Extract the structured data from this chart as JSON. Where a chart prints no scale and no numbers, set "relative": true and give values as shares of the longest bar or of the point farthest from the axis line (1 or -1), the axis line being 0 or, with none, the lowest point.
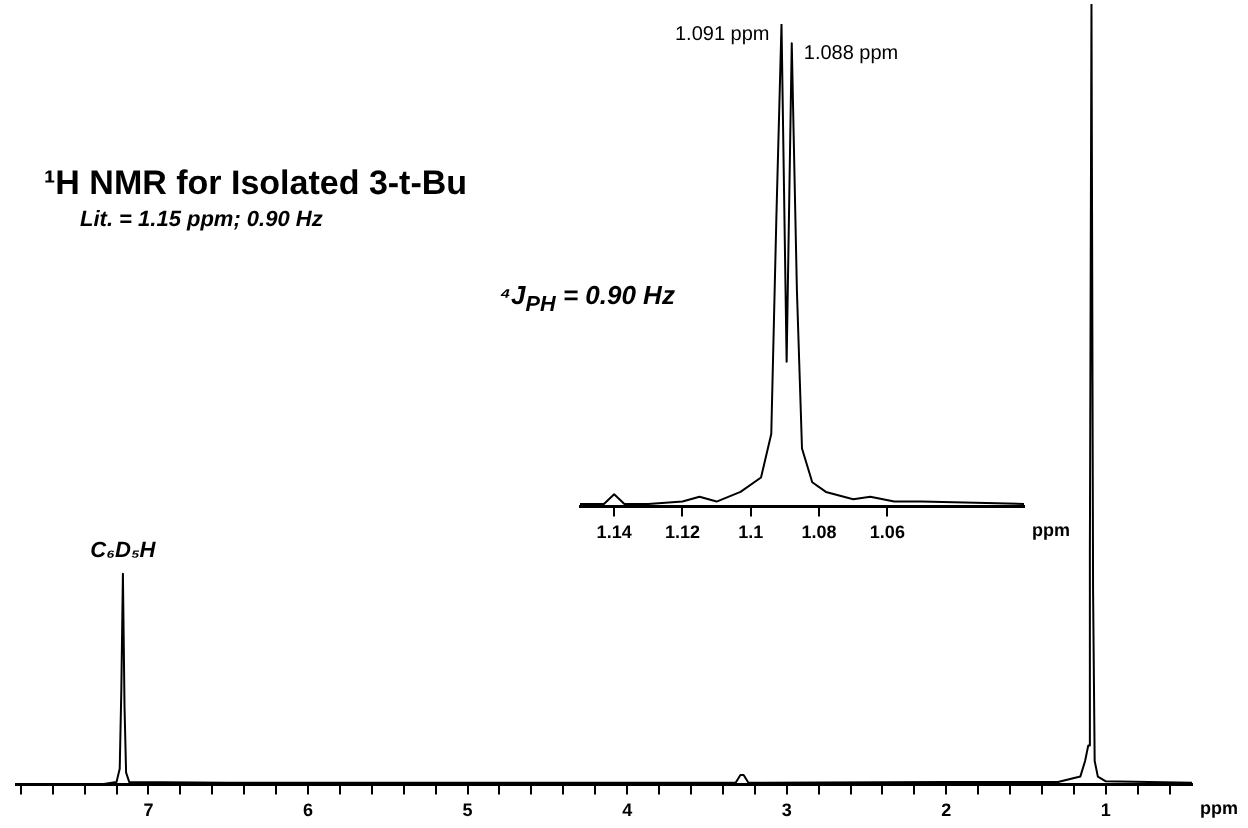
{
  "chart_data": [
    {
      "type": "line",
      "title": "¹H NMR for Isolated 3-t-Bu",
      "subtitle": "Lit. = 1.15 ppm; 0.90 Hz",
      "xlabel": "ppm",
      "relative": true,
      "color": "#000000",
      "grid": false,
      "x": [
        7.83,
        7.3,
        7.2,
        7.18,
        7.17,
        7.16,
        7.15,
        7.14,
        7.12,
        6.5,
        5.0,
        3.32,
        3.29,
        3.27,
        3.24,
        2.0,
        1.3,
        1.16,
        1.13,
        1.11,
        1.1,
        1.09,
        1.08,
        1.07,
        1.05,
        1.0,
        0.46
      ],
      "values": [
        0,
        0,
        0.003,
        0.02,
        0.12,
        0.27,
        0.1,
        0.015,
        0.003,
        0.002,
        0.002,
        0.002,
        0.012,
        0.012,
        0.002,
        0.003,
        0.003,
        0.01,
        0.03,
        0.05,
        0.3,
        1,
        0.25,
        0.03,
        0.01,
        0.004,
        0.002
      ],
      "xlim": [
        7.83,
        0.46
      ],
      "xticks": [
        {
          "value": 7.8,
          "label": null
        },
        {
          "value": 7.6,
          "label": null
        },
        {
          "value": 7.4,
          "label": null
        },
        {
          "value": 7.2,
          "label": null
        },
        7,
        {
          "value": 6.8,
          "label": null
        },
        {
          "value": 6.6,
          "label": null
        },
        {
          "value": 6.4,
          "label": null
        },
        {
          "value": 6.2,
          "label": null
        },
        6,
        {
          "value": 5.8,
          "label": null
        },
        {
          "value": 5.6,
          "label": null
        },
        {
          "value": 5.4,
          "label": null
        },
        {
          "value": 5.2,
          "label": null
        },
        5,
        {
          "value": 4.8,
          "label": null
        },
        {
          "value": 4.6,
          "label": null
        },
        {
          "value": 4.4,
          "label": null
        },
        {
          "value": 4.2,
          "label": null
        },
        4,
        {
          "value": 3.8,
          "label": null
        },
        {
          "value": 3.6,
          "label": null
        },
        {
          "value": 3.4,
          "label": null
        },
        {
          "value": 3.2,
          "label": null
        },
        3,
        {
          "value": 2.8,
          "label": null
        },
        {
          "value": 2.6,
          "label": null
        },
        {
          "value": 2.4,
          "label": null
        },
        {
          "value": 2.2,
          "label": null
        },
        2,
        {
          "value": 1.8,
          "label": null
        },
        {
          "value": 1.6,
          "label": null
        },
        {
          "value": 1.4,
          "label": null
        },
        {
          "value": 1.2,
          "label": null
        },
        1,
        {
          "value": 0.8,
          "label": null
        },
        {
          "value": 0.6,
          "label": null
        }
      ],
      "annotations": [
        {
          "text": "C₆D₅H",
          "x": 7.16,
          "y": 0.27
        }
      ]
    },
    {
      "type": "line",
      "xlabel": "ppm",
      "relative": true,
      "color": "#000000",
      "grid": false,
      "x": [
        1.15,
        1.143,
        1.14,
        1.137,
        1.13,
        1.12,
        1.115,
        1.11,
        1.103,
        1.097,
        1.094,
        1.0925,
        1.091,
        1.0895,
        1.088,
        1.0865,
        1.085,
        1.082,
        1.078,
        1.07,
        1.065,
        1.058,
        1.05,
        1.02
      ],
      "values": [
        0.005,
        0.005,
        0.025,
        0.005,
        0.005,
        0.01,
        0.02,
        0.01,
        0.03,
        0.06,
        0.15,
        0.6,
        1,
        0.3,
        0.96,
        0.45,
        0.12,
        0.05,
        0.03,
        0.015,
        0.02,
        0.01,
        0.01,
        0.005
      ],
      "xlim": [
        1.15,
        1.02
      ],
      "xticks": [
        1.14,
        1.12,
        1.1,
        1.08,
        1.06
      ],
      "annotations": [
        {
          "text": "1.091 ppm",
          "x": 1.091,
          "y": 1
        },
        {
          "text": "1.088 ppm",
          "x": 1.088,
          "y": 0.96
        },
        "⁴J$_{PH}$ = 0.90 Hz"
      ]
    }
  ]
}
